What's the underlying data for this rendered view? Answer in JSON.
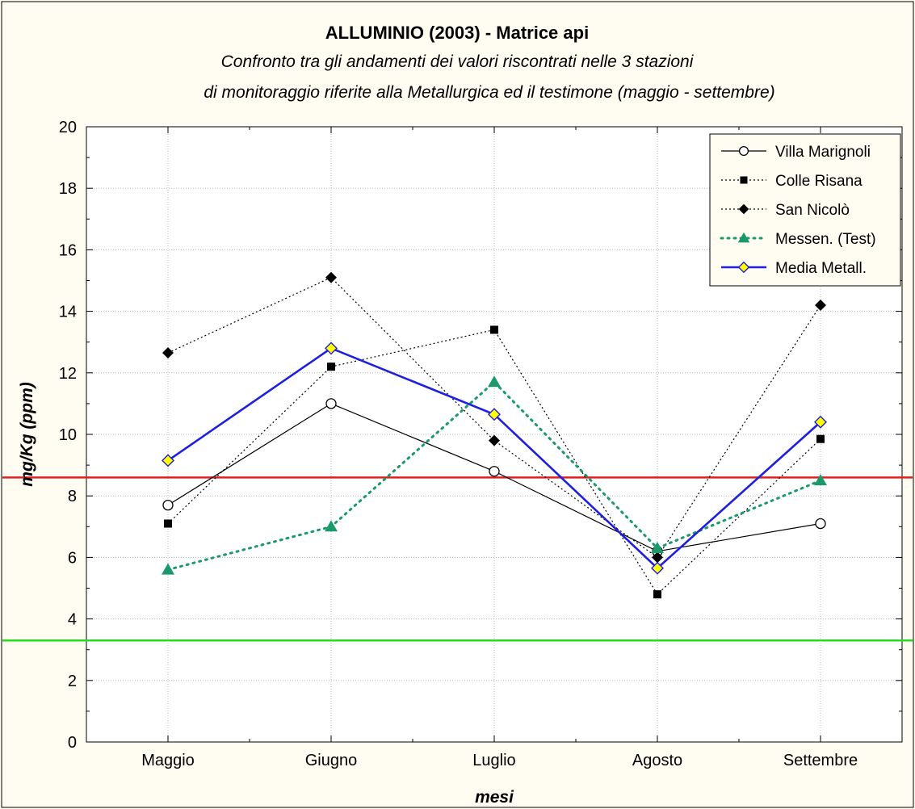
{
  "chart_data": {
    "type": "line",
    "title": "ALLUMINIO (2003) - Matrice api",
    "subtitle_lines": [
      "Confronto tra gli andamenti dei valori riscontrati nelle 3 stazioni",
      "di monitoraggio  riferite alla Metallurgica ed il testimone (maggio - settembre)"
    ],
    "xlabel": "mesi",
    "ylabel": "mg/Kg (ppm)",
    "categories": [
      "Maggio",
      "Giugno",
      "Luglio",
      "Agosto",
      "Settembre"
    ],
    "ylim": [
      0,
      20
    ],
    "yticks": [
      0,
      2,
      4,
      6,
      8,
      10,
      12,
      14,
      16,
      18,
      20
    ],
    "yticks_labels": [
      "0",
      "2",
      "4",
      "6",
      "8",
      "10",
      "12",
      "14",
      "16",
      "18",
      "20"
    ],
    "grid": true,
    "legend_position": "top-right",
    "series": [
      {
        "name": "Villa Marignoli",
        "values": [
          7.7,
          11.0,
          8.8,
          6.2,
          7.1
        ],
        "color": "#000000",
        "marker": "circle-open",
        "line": "solid"
      },
      {
        "name": "Colle Risana",
        "values": [
          7.1,
          12.2,
          13.4,
          4.8,
          9.85
        ],
        "color": "#000000",
        "marker": "square",
        "line": "dotted"
      },
      {
        "name": "San Nicolò",
        "values": [
          12.65,
          15.1,
          9.8,
          6.0,
          14.2
        ],
        "color": "#000000",
        "marker": "diamond",
        "line": "dotted"
      },
      {
        "name": "Messen. (Test)",
        "values": [
          5.6,
          7.0,
          11.7,
          6.3,
          8.5
        ],
        "color": "#1a9a6a",
        "marker": "triangle",
        "line": "dotted-heavy"
      },
      {
        "name": "Media Metall.",
        "values": [
          9.15,
          12.8,
          10.65,
          5.65,
          10.4
        ],
        "color": "#1f1fe0",
        "marker": "diamond-yellow",
        "line": "solid-heavy"
      }
    ],
    "reference_lines": [
      {
        "value": 8.6,
        "color": "#e02020"
      },
      {
        "value": 3.3,
        "color": "#22dd22"
      }
    ]
  }
}
